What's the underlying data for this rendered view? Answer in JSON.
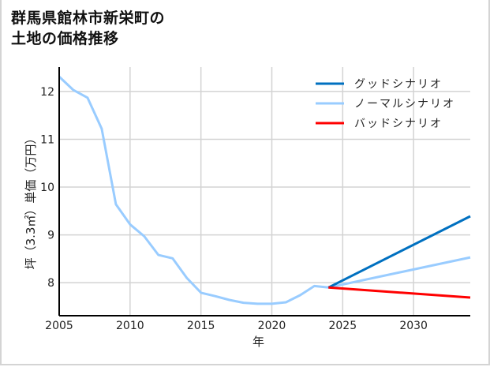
{
  "title": {
    "line1": "群馬県館林市新栄町の",
    "line2": "土地の価格推移"
  },
  "chart_data": {
    "type": "line",
    "title": "群馬県館林市新栄町の土地の価格推移",
    "xlabel": "年",
    "ylabel": "坪（3.3㎡）単価（万円）",
    "xlim": [
      2005,
      2034
    ],
    "ylim": [
      7.31,
      12.51
    ],
    "x_ticks": [
      2005,
      2010,
      2015,
      2020,
      2025,
      2030
    ],
    "y_ticks": [
      8,
      9,
      10,
      11,
      12
    ],
    "grid": true,
    "legend_position": "upper right",
    "series": [
      {
        "name": "ノーマルシナリオ",
        "color": "#99ccff",
        "x": [
          2005,
          2006,
          2007,
          2008,
          2009,
          2010,
          2011,
          2012,
          2013,
          2014,
          2015,
          2016,
          2017,
          2018,
          2019,
          2020,
          2021,
          2022,
          2023,
          2024,
          2034
        ],
        "values": [
          12.31,
          12.03,
          11.87,
          11.22,
          9.64,
          9.22,
          8.97,
          8.58,
          8.51,
          8.1,
          7.79,
          7.72,
          7.64,
          7.58,
          7.56,
          7.56,
          7.59,
          7.74,
          7.93,
          7.9,
          8.53
        ]
      },
      {
        "name": "グッドシナリオ",
        "color": "#0070c0",
        "x": [
          2024,
          2034
        ],
        "values": [
          7.9,
          9.39
        ]
      },
      {
        "name": "バッドシナリオ",
        "color": "#ff0000",
        "x": [
          2024,
          2034
        ],
        "values": [
          7.9,
          7.69
        ]
      }
    ]
  },
  "legend": [
    {
      "label": "グッドシナリオ",
      "color": "#0070c0"
    },
    {
      "label": "ノーマルシナリオ",
      "color": "#99ccff"
    },
    {
      "label": "バッドシナリオ",
      "color": "#ff0000"
    }
  ],
  "axes": {
    "xlabel": "年",
    "ylabel": "坪（3.3㎡）単価（万円）",
    "x_ticks": [
      "2005",
      "2010",
      "2015",
      "2020",
      "2025",
      "2030"
    ],
    "y_ticks": [
      "12",
      "11",
      "10",
      "9",
      "8"
    ]
  }
}
